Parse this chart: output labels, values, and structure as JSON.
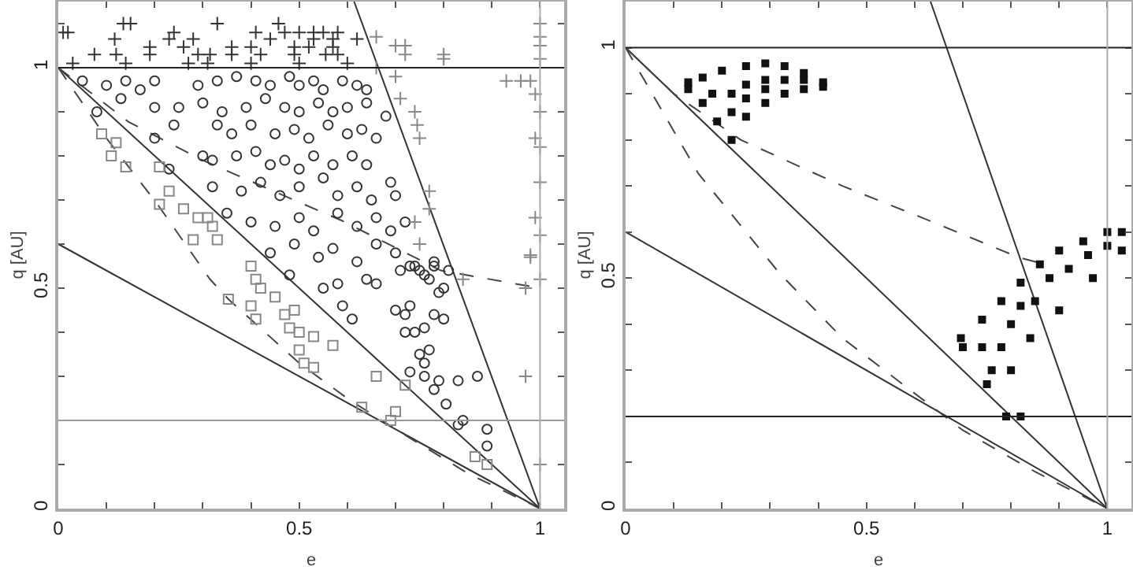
{
  "chart_data": [
    {
      "type": "scatter",
      "xlabel": "e",
      "ylabel": "q [AU]",
      "xlim": [
        0,
        1.05
      ],
      "ylim": [
        0,
        1.15
      ],
      "xticks": [
        0,
        {
          "value": 0.1,
          "label": null
        },
        {
          "value": 0.2,
          "label": null
        },
        {
          "value": 0.3,
          "label": null
        },
        {
          "value": 0.4,
          "label": null
        },
        0.5,
        {
          "value": 0.6,
          "label": null
        },
        {
          "value": 0.7,
          "label": null
        },
        {
          "value": 0.8,
          "label": null
        },
        {
          "value": 0.9,
          "label": null
        },
        1
      ],
      "yticks": [
        0,
        {
          "value": 0.1,
          "label": null
        },
        {
          "value": 0.2,
          "label": null
        },
        {
          "value": 0.3,
          "label": null
        },
        {
          "value": 0.4,
          "label": null
        },
        0.5,
        {
          "value": 0.6,
          "label": null
        },
        {
          "value": 0.7,
          "label": null
        },
        {
          "value": 0.8,
          "label": null
        },
        {
          "value": 0.9,
          "label": null
        },
        1,
        {
          "value": 1.1,
          "label": null
        }
      ],
      "grid": false,
      "ref_lines": [
        {
          "axis": "y",
          "value": 1,
          "color": "#222222"
        },
        {
          "axis": "y",
          "value": 0.2,
          "color": "#999999"
        },
        {
          "axis": "x",
          "value": 1,
          "color": "#aaaaaa"
        }
      ],
      "series": [
        {
          "type": "line",
          "color": "#333333",
          "line_style": "solid",
          "x": [
            0,
            1
          ],
          "values": [
            1,
            0
          ]
        },
        {
          "type": "line",
          "color": "#333333",
          "line_style": "solid",
          "x": [
            0,
            1
          ],
          "values": [
            0.6,
            0
          ]
        },
        {
          "type": "line",
          "color": "#333333",
          "line_style": "solid",
          "x": [
            0.614,
            1
          ],
          "values": [
            1.15,
            0
          ]
        },
        {
          "type": "line",
          "color": "#444444",
          "line_style": "dashed",
          "x": [
            0,
            0.146,
            0.3,
            0.489,
            0.587,
            0.794,
            1
          ],
          "values": [
            1,
            0.877,
            0.79,
            0.7,
            0.654,
            0.54,
            0.5
          ]
        },
        {
          "type": "line",
          "color": "#444444",
          "line_style": "dashed",
          "x": [
            0,
            0.1,
            0.206,
            0.315,
            0.353,
            0.5,
            0.6,
            0.7,
            0.85,
            1
          ],
          "values": [
            1,
            0.84,
            0.69,
            0.52,
            0.475,
            0.33,
            0.25,
            0.18,
            0.08,
            0
          ]
        },
        {
          "type": "scatter",
          "marker": "cross",
          "color": "#333333",
          "x": [
            0.135,
            0.15,
            0.33,
            0.457,
            0.01,
            0.02,
            0.24,
            0.41,
            0.47,
            0.5,
            0.53,
            0.55,
            0.58,
            0.117,
            0.23,
            0.28,
            0.44,
            0.53,
            0.57,
            0.62,
            0.19,
            0.26,
            0.36,
            0.4,
            0.49,
            0.52,
            0.57,
            0.075,
            0.12,
            0.19,
            0.29,
            0.315,
            0.36,
            0.42,
            0.49,
            0.555,
            0.58,
            0.03,
            0.14,
            0.27,
            0.31,
            0.4,
            0.5,
            0.6
          ],
          "values": [
            1.1,
            1.1,
            1.1,
            1.1,
            1.08,
            1.08,
            1.08,
            1.08,
            1.08,
            1.08,
            1.08,
            1.08,
            1.08,
            1.065,
            1.065,
            1.065,
            1.065,
            1.065,
            1.065,
            1.065,
            1.047,
            1.047,
            1.047,
            1.047,
            1.047,
            1.047,
            1.047,
            1.03,
            1.03,
            1.03,
            1.03,
            1.03,
            1.03,
            1.03,
            1.03,
            1.03,
            1.03,
            1.01,
            1.01,
            1.01,
            1.01,
            1.01,
            1.01,
            1.01
          ]
        },
        {
          "type": "scatter",
          "marker": "circle",
          "color": "#333333",
          "x": [
            0.05,
            0.1,
            0.14,
            0.17,
            0.2,
            0.29,
            0.33,
            0.37,
            0.41,
            0.44,
            0.48,
            0.5,
            0.53,
            0.55,
            0.59,
            0.62,
            0.64,
            0.08,
            0.13,
            0.2,
            0.25,
            0.3,
            0.34,
            0.39,
            0.43,
            0.47,
            0.5,
            0.54,
            0.57,
            0.6,
            0.64,
            0.68,
            0.2,
            0.24,
            0.33,
            0.36,
            0.4,
            0.45,
            0.49,
            0.52,
            0.56,
            0.6,
            0.63,
            0.66,
            0.23,
            0.3,
            0.32,
            0.37,
            0.41,
            0.44,
            0.47,
            0.5,
            0.53,
            0.57,
            0.61,
            0.64,
            0.32,
            0.38,
            0.42,
            0.46,
            0.5,
            0.55,
            0.58,
            0.62,
            0.65,
            0.69,
            0.7,
            0.35,
            0.4,
            0.45,
            0.5,
            0.53,
            0.58,
            0.62,
            0.66,
            0.69,
            0.72,
            0.44,
            0.49,
            0.54,
            0.57,
            0.62,
            0.66,
            0.7,
            0.73,
            0.78,
            0.48,
            0.55,
            0.58,
            0.59,
            0.61,
            0.64,
            0.66,
            0.71,
            0.74,
            0.75,
            0.76,
            0.77,
            0.78,
            0.79,
            0.8,
            0.81,
            0.7,
            0.72,
            0.73,
            0.74,
            0.76,
            0.78,
            0.8,
            0.72,
            0.75,
            0.77,
            0.76,
            0.73,
            0.76,
            0.79,
            0.78,
            0.83,
            0.87,
            0.805,
            0.84,
            0.83,
            0.89,
            0.89
          ],
          "values": [
            0.97,
            0.96,
            0.97,
            0.95,
            0.97,
            0.96,
            0.97,
            0.98,
            0.97,
            0.96,
            0.98,
            0.96,
            0.97,
            0.95,
            0.97,
            0.96,
            0.95,
            0.9,
            0.93,
            0.91,
            0.91,
            0.92,
            0.9,
            0.91,
            0.93,
            0.91,
            0.9,
            0.92,
            0.9,
            0.91,
            0.92,
            0.89,
            0.84,
            0.87,
            0.87,
            0.85,
            0.87,
            0.85,
            0.86,
            0.84,
            0.87,
            0.85,
            0.86,
            0.84,
            0.77,
            0.8,
            0.79,
            0.8,
            0.81,
            0.78,
            0.79,
            0.77,
            0.8,
            0.78,
            0.8,
            0.78,
            0.73,
            0.72,
            0.74,
            0.71,
            0.73,
            0.75,
            0.71,
            0.73,
            0.7,
            0.74,
            0.71,
            0.67,
            0.65,
            0.64,
            0.66,
            0.63,
            0.67,
            0.64,
            0.66,
            0.63,
            0.65,
            0.58,
            0.6,
            0.57,
            0.59,
            0.56,
            0.6,
            0.58,
            0.55,
            0.56,
            0.53,
            0.5,
            0.51,
            0.46,
            0.43,
            0.52,
            0.51,
            0.54,
            0.55,
            0.54,
            0.53,
            0.52,
            0.55,
            0.49,
            0.5,
            0.54,
            0.45,
            0.44,
            0.46,
            0.4,
            0.41,
            0.44,
            0.43,
            0.4,
            0.35,
            0.36,
            0.33,
            0.31,
            0.3,
            0.29,
            0.27,
            0.29,
            0.3,
            0.237,
            0.2,
            0.19,
            0.18,
            0.142
          ]
        },
        {
          "type": "scatter",
          "marker": "square",
          "color": "#888888",
          "x": [
            0.09,
            0.12,
            0.11,
            0.14,
            0.21,
            0.23,
            0.21,
            0.26,
            0.29,
            0.31,
            0.32,
            0.28,
            0.33,
            0.4,
            0.41,
            0.353,
            0.4,
            0.41,
            0.42,
            0.45,
            0.47,
            0.49,
            0.48,
            0.5,
            0.53,
            0.57,
            0.5,
            0.51,
            0.53,
            0.66,
            0.72,
            0.63,
            0.7,
            0.69,
            0.865,
            0.89
          ],
          "values": [
            0.85,
            0.83,
            0.8,
            0.775,
            0.775,
            0.72,
            0.69,
            0.68,
            0.66,
            0.66,
            0.64,
            0.61,
            0.61,
            0.55,
            0.52,
            0.475,
            0.46,
            0.43,
            0.5,
            0.48,
            0.44,
            0.45,
            0.41,
            0.4,
            0.39,
            0.37,
            0.36,
            0.33,
            0.32,
            0.3,
            0.28,
            0.23,
            0.22,
            0.2,
            0.118,
            0.1
          ]
        },
        {
          "type": "scatter",
          "marker": "cross",
          "color": "#888888",
          "x": [
            0.66,
            0.7,
            0.72,
            0.72,
            0.66,
            0.7,
            0.71,
            0.74,
            0.745,
            0.75,
            0.8,
            0.8,
            0.96,
            0.98,
            0.93,
            1,
            1,
            1,
            1,
            0.99,
            1,
            0.99,
            1,
            0.77,
            0.77,
            0.74,
            0.75,
            1,
            0.99,
            1,
            0.98,
            0.98,
            1,
            0.97,
            0.97,
            1,
            0.84
          ],
          "values": [
            1.07,
            1.05,
            1.05,
            1.03,
            1,
            0.98,
            0.93,
            0.9,
            0.87,
            0.84,
            1.03,
            1.02,
            0.97,
            0.97,
            0.97,
            1.1,
            1.07,
            1.05,
            1.02,
            0.94,
            0.9,
            0.84,
            0.82,
            0.72,
            0.68,
            0.65,
            0.6,
            0.74,
            0.66,
            0.62,
            0.57,
            0.575,
            0.52,
            0.5,
            0.3,
            0.1,
            0.52
          ]
        }
      ]
    },
    {
      "type": "scatter",
      "xlabel": "e",
      "ylabel": "q [AU]",
      "xlim": [
        0,
        1.05
      ],
      "ylim": [
        0,
        1.1
      ],
      "xticks": [
        0,
        {
          "value": 0.1,
          "label": null
        },
        {
          "value": 0.2,
          "label": null
        },
        {
          "value": 0.3,
          "label": null
        },
        {
          "value": 0.4,
          "label": null
        },
        0.5,
        {
          "value": 0.6,
          "label": null
        },
        {
          "value": 0.7,
          "label": null
        },
        {
          "value": 0.8,
          "label": null
        },
        {
          "value": 0.9,
          "label": null
        },
        1
      ],
      "yticks": [
        0,
        {
          "value": 0.1,
          "label": null
        },
        {
          "value": 0.2,
          "label": null
        },
        {
          "value": 0.3,
          "label": null
        },
        {
          "value": 0.4,
          "label": null
        },
        0.5,
        {
          "value": 0.6,
          "label": null
        },
        {
          "value": 0.7,
          "label": null
        },
        {
          "value": 0.8,
          "label": null
        },
        {
          "value": 0.9,
          "label": null
        },
        1
      ],
      "grid": false,
      "ref_lines": [
        {
          "axis": "y",
          "value": 1,
          "color": "#222222"
        },
        {
          "axis": "y",
          "value": 0.2,
          "color": "#222222"
        },
        {
          "axis": "x",
          "value": 1,
          "color": "#aaaaaa"
        }
      ],
      "series": [
        {
          "type": "line",
          "color": "#333333",
          "line_style": "solid",
          "x": [
            0,
            1
          ],
          "values": [
            1,
            0
          ]
        },
        {
          "type": "line",
          "color": "#333333",
          "line_style": "solid",
          "x": [
            0,
            1
          ],
          "values": [
            0.6,
            0
          ]
        },
        {
          "type": "line",
          "color": "#333333",
          "line_style": "solid",
          "x": [
            0.633,
            1
          ],
          "values": [
            1.1,
            0
          ]
        },
        {
          "type": "line",
          "color": "#444444",
          "line_style": "dashed",
          "x": [
            0,
            0.1,
            0.239,
            0.45,
            0.63,
            0.816,
            0.87
          ],
          "values": [
            1,
            0.9,
            0.8,
            0.7,
            0.625,
            0.545,
            0.53
          ]
        },
        {
          "type": "line",
          "color": "#444444",
          "line_style": "dashed",
          "x": [
            0,
            0.151,
            0.32,
            0.45,
            0.6,
            0.7,
            0.85,
            1
          ],
          "values": [
            1,
            0.727,
            0.51,
            0.37,
            0.25,
            0.17,
            0.08,
            0
          ]
        },
        {
          "type": "scatter",
          "marker": "square",
          "color": "#111111",
          "x": [
            0.13,
            0.16,
            0.2,
            0.25,
            0.29,
            0.33,
            0.37,
            0.41,
            0.13,
            0.16,
            0.19,
            0.22,
            0.25,
            0.29,
            0.33,
            0.37,
            0.41,
            0.18,
            0.22,
            0.22,
            0.25,
            0.25,
            0.29,
            0.29,
            0.33,
            0.37
          ],
          "values": [
            0.925,
            0.935,
            0.95,
            0.96,
            0.966,
            0.96,
            0.945,
            0.925,
            0.91,
            0.88,
            0.84,
            0.8,
            0.85,
            0.88,
            0.9,
            0.91,
            0.915,
            0.9,
            0.9,
            0.86,
            0.92,
            0.89,
            0.93,
            0.91,
            0.93,
            0.93
          ]
        },
        {
          "type": "scatter",
          "marker": "square",
          "color": "#111111",
          "x": [
            0.696,
            0.74,
            0.78,
            0.82,
            0.86,
            0.9,
            0.95,
            1,
            1.03,
            0.7,
            0.75,
            0.79,
            0.82,
            0.84,
            0.9,
            0.97,
            1.03,
            0.74,
            0.76,
            0.78,
            0.8,
            0.8,
            0.82,
            0.85,
            0.88,
            0.92,
            0.96,
            1
          ],
          "values": [
            0.37,
            0.41,
            0.45,
            0.49,
            0.53,
            0.56,
            0.58,
            0.6,
            0.6,
            0.35,
            0.27,
            0.2,
            0.2,
            0.37,
            0.43,
            0.5,
            0.56,
            0.35,
            0.3,
            0.35,
            0.3,
            0.4,
            0.44,
            0.45,
            0.5,
            0.52,
            0.55,
            0.57
          ]
        }
      ]
    }
  ]
}
